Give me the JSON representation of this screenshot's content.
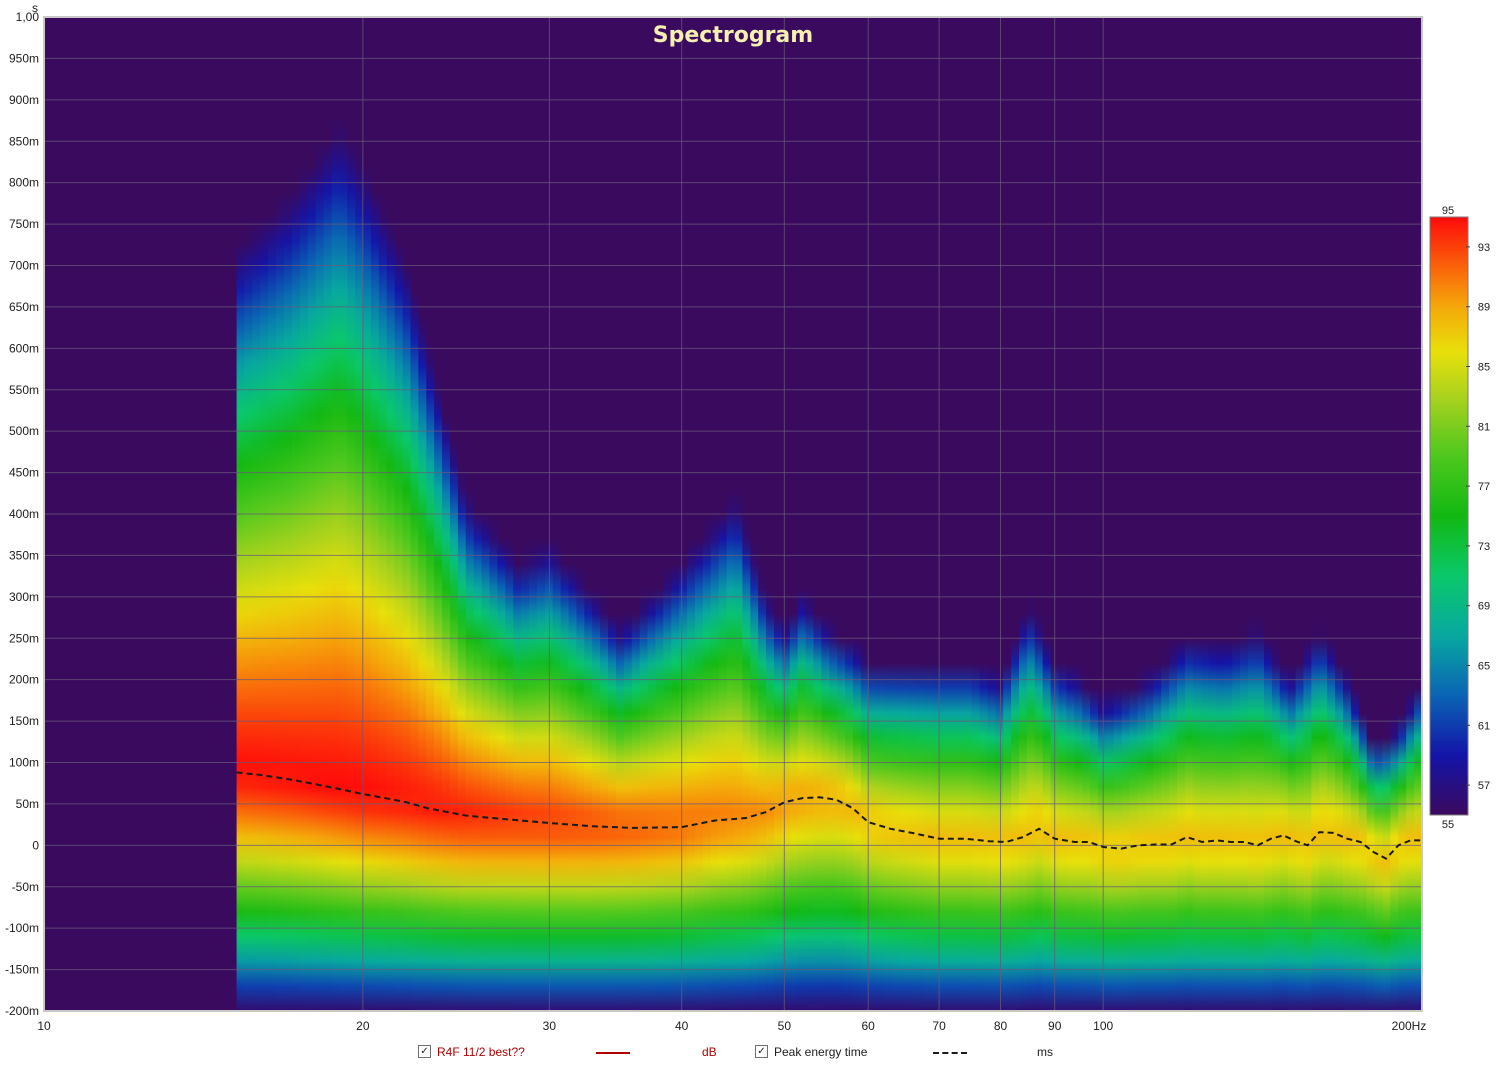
{
  "chart_data": {
    "type": "heatmap",
    "title": "Spectrogram",
    "x_unit": "Hz",
    "y_unit": "s",
    "x_scale": "log",
    "xlim": [
      10,
      200
    ],
    "ylim": [
      -0.2,
      1.0
    ],
    "x_ticks": [
      {
        "value": 10,
        "label": "10"
      },
      {
        "value": 20,
        "label": "20"
      },
      {
        "value": 30,
        "label": "30"
      },
      {
        "value": 40,
        "label": "40"
      },
      {
        "value": 50,
        "label": "50"
      },
      {
        "value": 60,
        "label": "60"
      },
      {
        "value": 70,
        "label": "70"
      },
      {
        "value": 80,
        "label": "80"
      },
      {
        "value": 90,
        "label": "90"
      },
      {
        "value": 100,
        "label": "100"
      },
      {
        "value": 200,
        "label": "200Hz"
      }
    ],
    "y_ticks": [
      {
        "value": 1.0,
        "label": "1,00"
      },
      {
        "value": 0.95,
        "label": "950m"
      },
      {
        "value": 0.9,
        "label": "900m"
      },
      {
        "value": 0.85,
        "label": "850m"
      },
      {
        "value": 0.8,
        "label": "800m"
      },
      {
        "value": 0.75,
        "label": "750m"
      },
      {
        "value": 0.7,
        "label": "700m"
      },
      {
        "value": 0.65,
        "label": "650m"
      },
      {
        "value": 0.6,
        "label": "600m"
      },
      {
        "value": 0.55,
        "label": "550m"
      },
      {
        "value": 0.5,
        "label": "500m"
      },
      {
        "value": 0.45,
        "label": "450m"
      },
      {
        "value": 0.4,
        "label": "400m"
      },
      {
        "value": 0.35,
        "label": "350m"
      },
      {
        "value": 0.3,
        "label": "300m"
      },
      {
        "value": 0.25,
        "label": "250m"
      },
      {
        "value": 0.2,
        "label": "200m"
      },
      {
        "value": 0.15,
        "label": "150m"
      },
      {
        "value": 0.1,
        "label": "100m"
      },
      {
        "value": 0.05,
        "label": "50m"
      },
      {
        "value": 0.0,
        "label": "0"
      },
      {
        "value": -0.05,
        "label": "-50m"
      },
      {
        "value": -0.1,
        "label": "-100m"
      },
      {
        "value": -0.15,
        "label": "-150m"
      },
      {
        "value": -0.2,
        "label": "-200m"
      }
    ],
    "colorbar": {
      "min": 55,
      "max": 95,
      "min_label": "55",
      "max_label": "95",
      "tick_labels": [
        "93",
        "89",
        "85",
        "81",
        "77",
        "73",
        "69",
        "65",
        "61",
        "57"
      ],
      "tick_values": [
        93,
        89,
        85,
        81,
        77,
        73,
        69,
        65,
        61,
        57
      ],
      "colors": [
        {
          "value": 55,
          "color": "#3a0a5e"
        },
        {
          "value": 59,
          "color": "#1414a8"
        },
        {
          "value": 63,
          "color": "#0a64b4"
        },
        {
          "value": 67,
          "color": "#08a8a0"
        },
        {
          "value": 71,
          "color": "#0ac86a"
        },
        {
          "value": 75,
          "color": "#12b812"
        },
        {
          "value": 79,
          "color": "#4ec81e"
        },
        {
          "value": 83,
          "color": "#aad21e"
        },
        {
          "value": 86,
          "color": "#e8e00a"
        },
        {
          "value": 89,
          "color": "#f5a80a"
        },
        {
          "value": 92,
          "color": "#fa5a0a"
        },
        {
          "value": 95,
          "color": "#ff0a0a"
        }
      ]
    },
    "colors": {
      "background": "#3a0a5e",
      "frame": "#c8c8c8",
      "grid": "#6a5a7a",
      "title": "#f4f0b0",
      "peak_line": "#1a1a1a"
    },
    "data_extent": {
      "x_min": 15.2,
      "x_max": 200
    },
    "ridge_profile": {
      "x": [
        15.2,
        17,
        19,
        20,
        22,
        25,
        28,
        30,
        35,
        40,
        45,
        48,
        50,
        52,
        55,
        58,
        60,
        65,
        70,
        75,
        80,
        85,
        90,
        95,
        100,
        110,
        120,
        130,
        140,
        150,
        160,
        170,
        180,
        190,
        200
      ],
      "decay_to_s": [
        0.72,
        0.78,
        0.87,
        0.82,
        0.7,
        0.42,
        0.34,
        0.36,
        0.26,
        0.34,
        0.42,
        0.3,
        0.26,
        0.3,
        0.26,
        0.24,
        0.22,
        0.22,
        0.22,
        0.22,
        0.2,
        0.29,
        0.22,
        0.2,
        0.17,
        0.2,
        0.25,
        0.24,
        0.26,
        0.2,
        0.26,
        0.2,
        0.12,
        0.14,
        0.2
      ]
    },
    "series": [
      {
        "name": "R4F 11/2 best??",
        "type": "heatmap",
        "unit": "dB",
        "color": "#b00000",
        "checked": true
      },
      {
        "name": "Peak energy time",
        "type": "line",
        "style": "dashed",
        "unit": "ms",
        "color": "#1a1a1a",
        "checked": true,
        "x": [
          15.2,
          16,
          17,
          18,
          19,
          20,
          21,
          22,
          23,
          25,
          27,
          30,
          33,
          36,
          40,
          43,
          46,
          48,
          50,
          52,
          54,
          56,
          58,
          60,
          63,
          66,
          70,
          74,
          78,
          81,
          84,
          87,
          90,
          94,
          97,
          100,
          104,
          108,
          112,
          116,
          120,
          124,
          128,
          132,
          136,
          140,
          144,
          148,
          152,
          156,
          160,
          165,
          170,
          175,
          180,
          185,
          190,
          195,
          200
        ],
        "y": [
          0.088,
          0.085,
          0.08,
          0.074,
          0.068,
          0.062,
          0.057,
          0.052,
          0.045,
          0.036,
          0.032,
          0.027,
          0.023,
          0.021,
          0.022,
          0.03,
          0.033,
          0.04,
          0.052,
          0.057,
          0.058,
          0.055,
          0.045,
          0.028,
          0.02,
          0.015,
          0.008,
          0.008,
          0.005,
          0.004,
          0.01,
          0.02,
          0.008,
          0.004,
          0.004,
          -0.002,
          -0.004,
          0.0,
          0.001,
          0.001,
          0.01,
          0.004,
          0.006,
          0.004,
          0.004,
          0.0,
          0.008,
          0.012,
          0.005,
          0.0,
          0.016,
          0.015,
          0.008,
          0.004,
          -0.008,
          -0.016,
          0.0,
          0.006,
          0.006
        ]
      }
    ],
    "legend": {
      "placement": "bottom-center",
      "check_mark": "✓",
      "items": [
        {
          "label": "R4F 11/2 best??",
          "unit": "dB"
        },
        {
          "label": "Peak energy time",
          "unit": "ms"
        }
      ]
    }
  }
}
